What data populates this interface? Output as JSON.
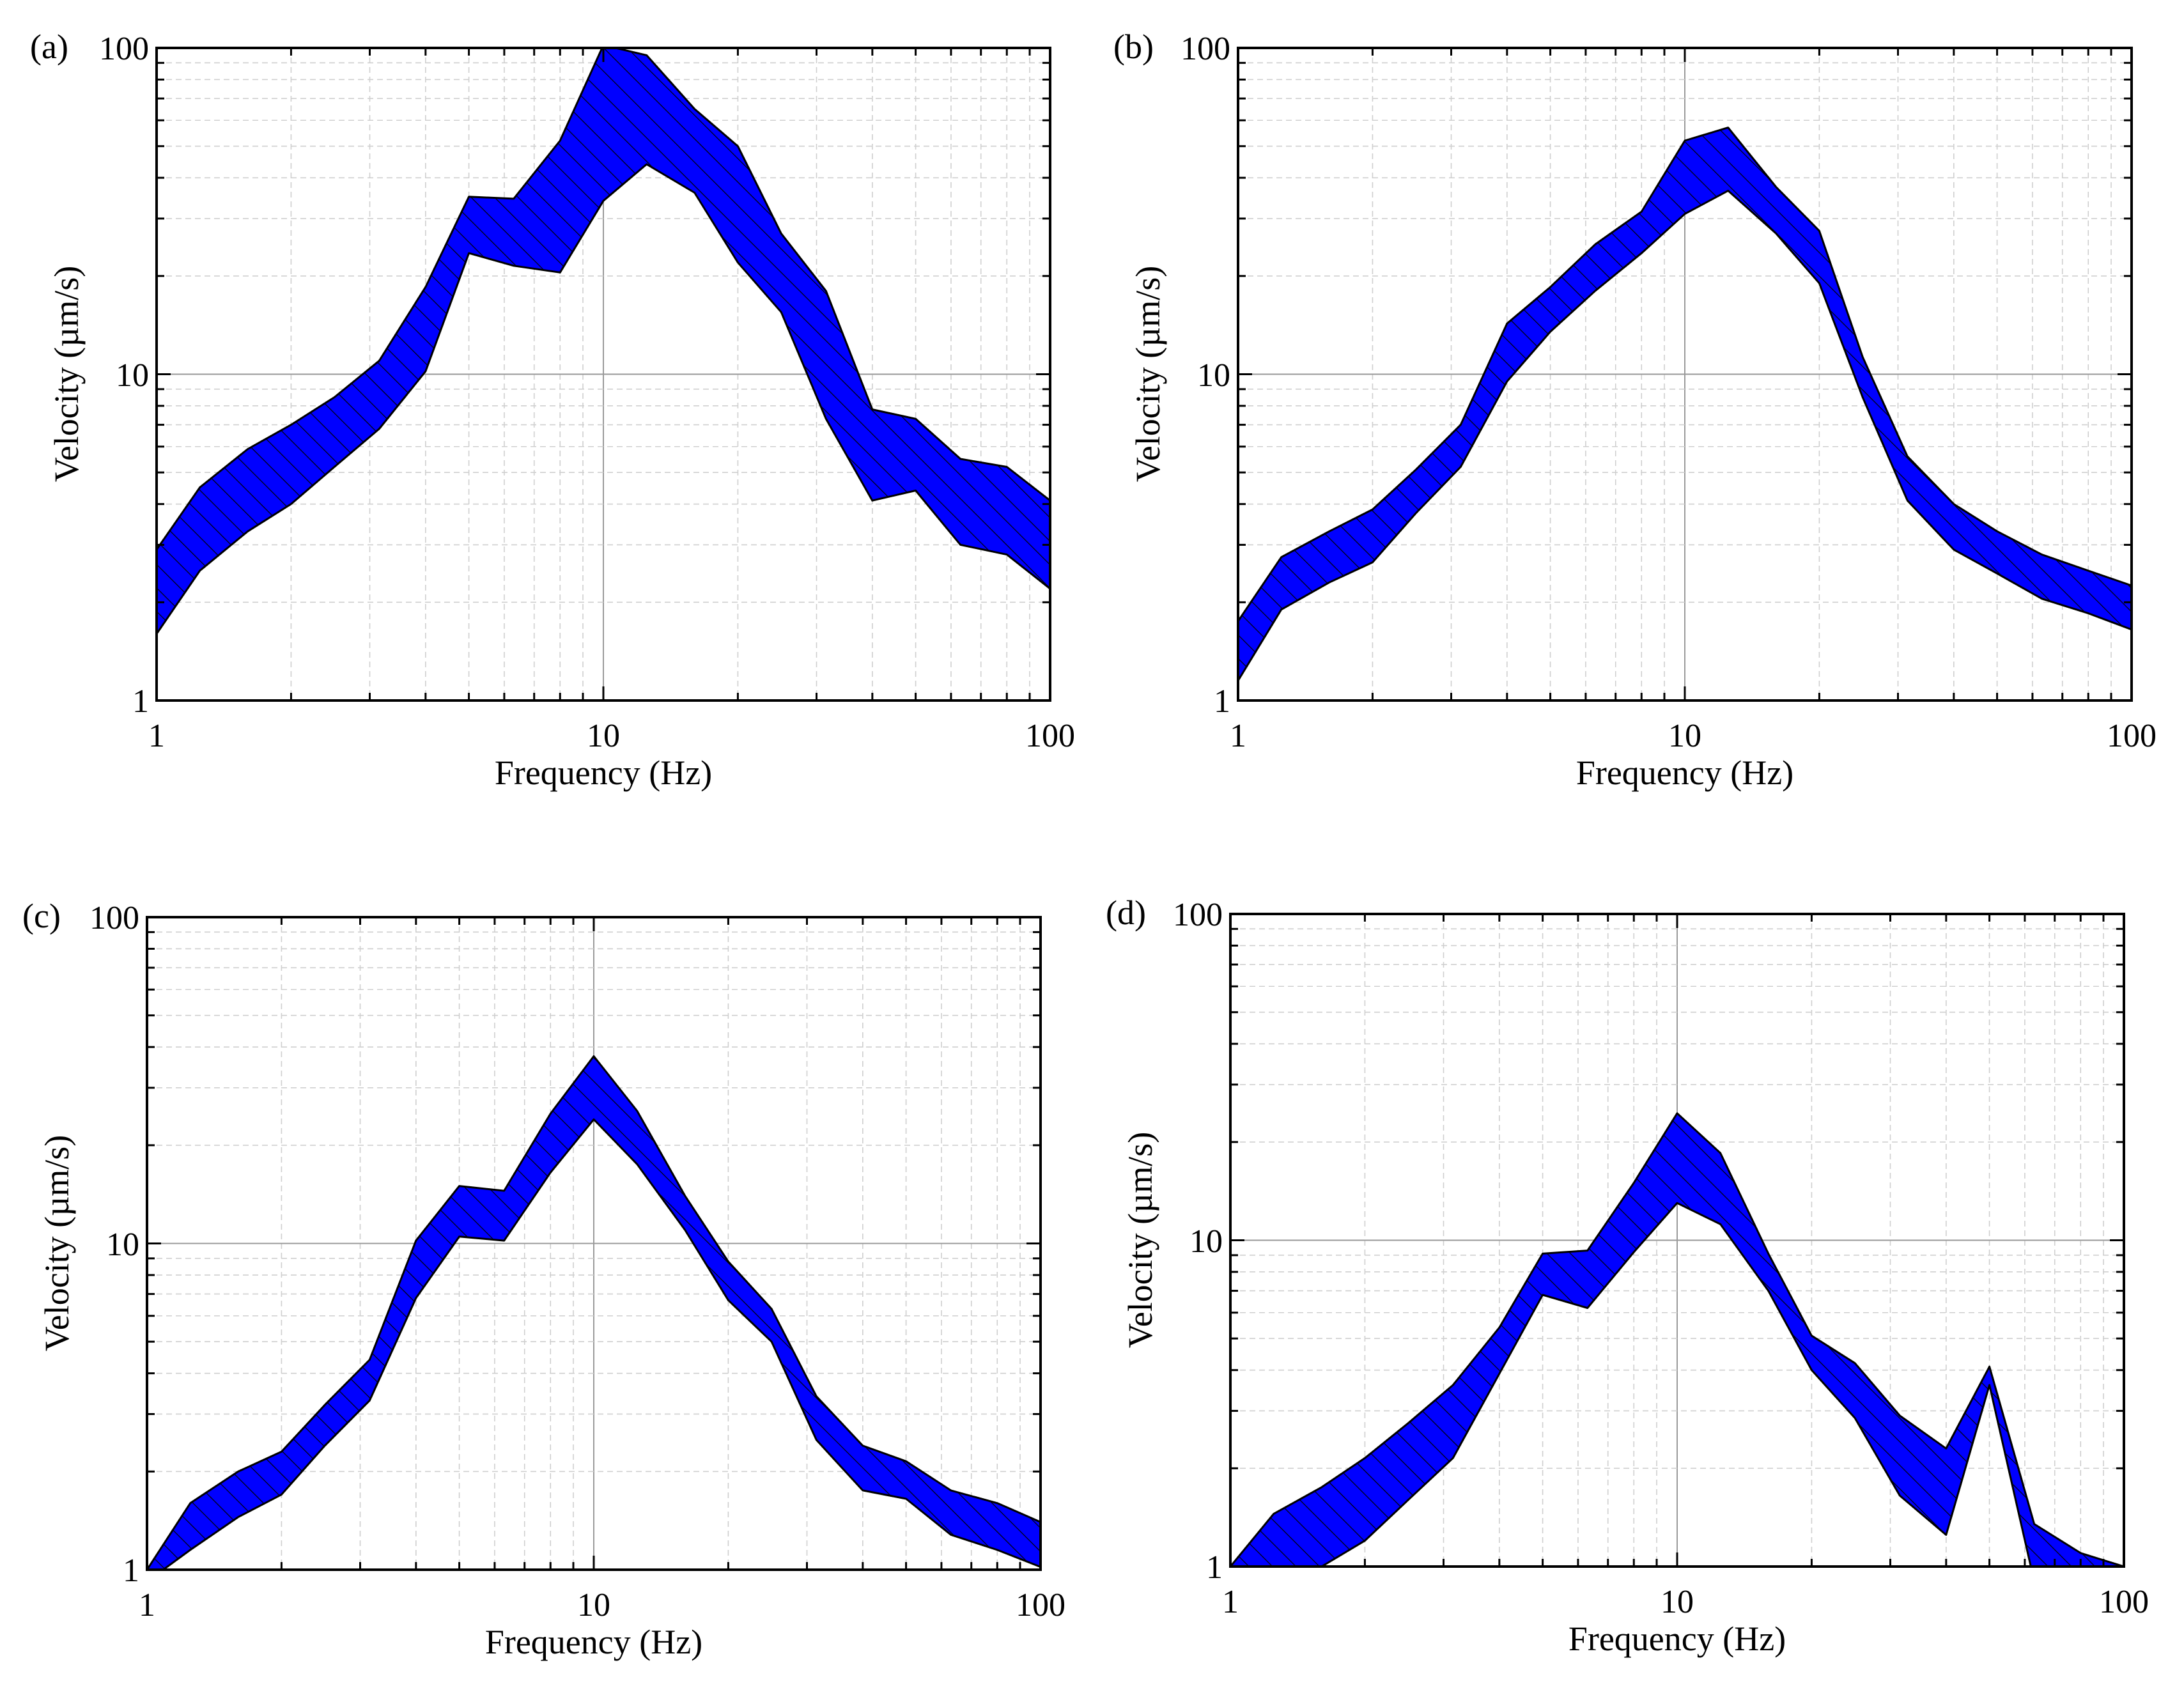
{
  "style": {
    "band_fill": "#0000ff",
    "band_outline": "#000000",
    "hatch": "#000000",
    "grid_minor": "#cfcfcf",
    "grid_major": "#9a9a9a",
    "frame": "#000000"
  },
  "chart_data": [
    {
      "type": "area",
      "panel_label": "(a)",
      "xlabel": "Frequency (Hz)",
      "ylabel": "Velocity (µm/s)",
      "xscale": "log",
      "yscale": "log",
      "xlim": [
        1,
        100
      ],
      "ylim": [
        1,
        100
      ],
      "xticks": [
        "1",
        "10",
        "100"
      ],
      "yticks": [
        "1",
        "10",
        "100"
      ],
      "grid": true,
      "x": [
        1,
        1.25,
        1.6,
        2,
        2.5,
        3.15,
        4,
        5,
        6.3,
        8,
        10,
        12.5,
        16,
        20,
        25,
        31.5,
        40,
        50,
        63,
        80,
        100
      ],
      "series": [
        {
          "name": "upper",
          "values": [
            2.9,
            4.5,
            5.9,
            7.0,
            8.5,
            11.0,
            18.5,
            35.0,
            34.5,
            52,
            102,
            95,
            65,
            50,
            27,
            18,
            7.8,
            7.3,
            5.5,
            5.2,
            4.1
          ]
        },
        {
          "name": "lower",
          "values": [
            1.6,
            2.5,
            3.3,
            4.0,
            5.2,
            6.8,
            10.2,
            23.5,
            21.5,
            20.5,
            34,
            44,
            36,
            22,
            15.5,
            7.3,
            4.1,
            4.4,
            3.0,
            2.8,
            2.2
          ]
        }
      ]
    },
    {
      "type": "area",
      "panel_label": "(b)",
      "xlabel": "Frequency (Hz)",
      "ylabel": "Velocity (µm/s)",
      "xscale": "log",
      "yscale": "log",
      "xlim": [
        1,
        100
      ],
      "ylim": [
        1,
        100
      ],
      "xticks": [
        "1",
        "10",
        "100"
      ],
      "yticks": [
        "1",
        "10",
        "100"
      ],
      "grid": true,
      "x": [
        1,
        1.25,
        1.6,
        2,
        2.5,
        3.15,
        4,
        5,
        6.3,
        8,
        10,
        12.5,
        16,
        20,
        25,
        31.5,
        40,
        50,
        63,
        80,
        100
      ],
      "series": [
        {
          "name": "upper",
          "values": [
            1.75,
            2.75,
            3.3,
            3.85,
            5.1,
            7.0,
            14.3,
            18.5,
            25,
            31.5,
            52,
            57,
            37.5,
            27.5,
            11.3,
            5.6,
            4.0,
            3.3,
            2.8,
            2.5,
            2.25
          ]
        },
        {
          "name": "lower",
          "values": [
            1.15,
            1.9,
            2.3,
            2.65,
            3.75,
            5.2,
            9.5,
            13.5,
            18,
            23.5,
            31,
            36.5,
            27,
            19,
            8.5,
            4.1,
            2.9,
            2.45,
            2.05,
            1.85,
            1.65
          ]
        }
      ]
    },
    {
      "type": "area",
      "panel_label": "(c)",
      "xlabel": "Frequency (Hz)",
      "ylabel": "Velocity (µm/s)",
      "xscale": "log",
      "yscale": "log",
      "xlim": [
        1,
        100
      ],
      "ylim": [
        1,
        100
      ],
      "xticks": [
        "1",
        "10",
        "100"
      ],
      "yticks": [
        "1",
        "10",
        "100"
      ],
      "grid": true,
      "x": [
        1,
        1.25,
        1.6,
        2,
        2.5,
        3.15,
        4,
        5,
        6.3,
        8,
        10,
        12.5,
        16,
        20,
        25,
        31.5,
        40,
        50,
        63,
        80,
        100
      ],
      "series": [
        {
          "name": "upper",
          "values": [
            1.0,
            1.6,
            2.0,
            2.3,
            3.2,
            4.4,
            10.2,
            15,
            14.5,
            25,
            37.5,
            25.5,
            14,
            8.8,
            6.3,
            3.4,
            2.4,
            2.15,
            1.75,
            1.6,
            1.4
          ]
        },
        {
          "name": "lower",
          "values": [
            0.92,
            1.15,
            1.45,
            1.7,
            2.4,
            3.3,
            6.8,
            10.5,
            10.2,
            16.5,
            24,
            17.5,
            11,
            6.7,
            5.0,
            2.5,
            1.75,
            1.65,
            1.28,
            1.15,
            1.02
          ]
        }
      ]
    },
    {
      "type": "area",
      "panel_label": "(d)",
      "xlabel": "Frequency (Hz)",
      "ylabel": "Velocity (µm/s)",
      "xscale": "log",
      "yscale": "log",
      "xlim": [
        1,
        100
      ],
      "ylim": [
        1,
        100
      ],
      "xticks": [
        "1",
        "10",
        "100"
      ],
      "yticks": [
        "1",
        "10",
        "100"
      ],
      "grid": true,
      "x": [
        1,
        1.25,
        1.6,
        2,
        2.5,
        3.15,
        4,
        5,
        6.3,
        8,
        10,
        12.5,
        16,
        20,
        25,
        31.5,
        40,
        50,
        63,
        80,
        100
      ],
      "series": [
        {
          "name": "upper",
          "values": [
            1.0,
            1.45,
            1.75,
            2.15,
            2.75,
            3.6,
            5.4,
            9.1,
            9.3,
            15,
            24.5,
            18.5,
            9.1,
            5.1,
            4.2,
            2.9,
            2.3,
            4.1,
            1.35,
            1.1,
            1.0
          ]
        },
        {
          "name": "lower",
          "values": [
            0.9,
            0.92,
            1.0,
            1.2,
            1.6,
            2.15,
            3.9,
            6.8,
            6.2,
            9.2,
            13,
            11.2,
            7.0,
            4.0,
            2.85,
            1.65,
            1.25,
            3.6,
            0.9,
            0.9,
            0.95
          ]
        }
      ]
    }
  ]
}
